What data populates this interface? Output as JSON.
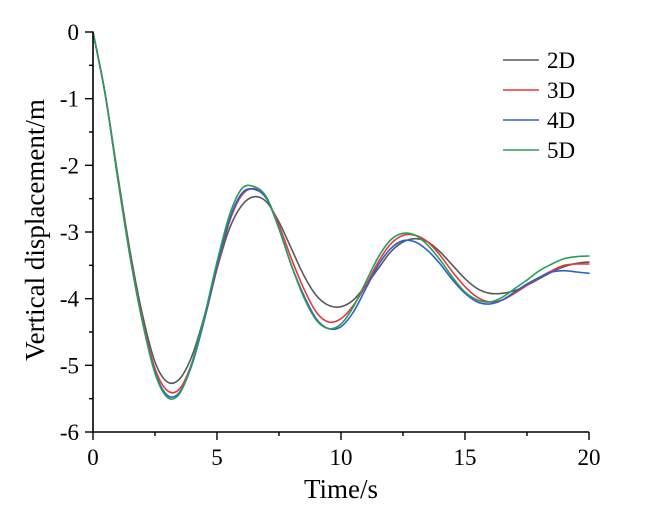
{
  "chart_data": {
    "type": "line",
    "title": "",
    "xlabel": "Time/s",
    "ylabel": "Vertical displacement/m",
    "xlim": [
      0,
      20
    ],
    "ylim": [
      -6,
      0
    ],
    "x_ticks": [
      0,
      5,
      10,
      15,
      20
    ],
    "y_ticks": [
      0,
      -1,
      -2,
      -3,
      -4,
      -5,
      -6
    ],
    "x_tick_labels": [
      "0",
      "5",
      "10",
      "15",
      "20"
    ],
    "y_tick_labels": [
      "0",
      "-1",
      "-2",
      "-3",
      "-4",
      "-5",
      "-6"
    ],
    "grid": false,
    "legend_position": "top-right",
    "x": [
      0,
      0.5,
      1,
      1.5,
      2,
      2.5,
      3,
      3.5,
      4,
      4.5,
      5,
      5.5,
      6,
      6.5,
      7,
      7.5,
      8,
      8.5,
      9,
      9.5,
      10,
      10.5,
      11,
      11.5,
      12,
      12.5,
      13,
      13.5,
      14,
      14.5,
      15,
      15.5,
      16,
      16.5,
      17,
      17.5,
      18,
      18.5,
      19,
      19.5,
      20
    ],
    "series": [
      {
        "name": "2D",
        "color": "#595959",
        "values": [
          0,
          -0.95,
          -2.15,
          -3.3,
          -4.25,
          -4.95,
          -5.25,
          -5.2,
          -4.85,
          -4.25,
          -3.55,
          -2.95,
          -2.6,
          -2.47,
          -2.55,
          -2.85,
          -3.25,
          -3.65,
          -3.95,
          -4.1,
          -4.12,
          -4.02,
          -3.8,
          -3.55,
          -3.3,
          -3.15,
          -3.1,
          -3.15,
          -3.3,
          -3.5,
          -3.7,
          -3.85,
          -3.92,
          -3.92,
          -3.88,
          -3.8,
          -3.7,
          -3.6,
          -3.52,
          -3.47,
          -3.45
        ]
      },
      {
        "name": "3D",
        "color": "#e8373a",
        "values": [
          0,
          -0.95,
          -2.18,
          -3.35,
          -4.32,
          -5.05,
          -5.38,
          -5.35,
          -4.95,
          -4.3,
          -3.55,
          -2.85,
          -2.45,
          -2.35,
          -2.5,
          -2.9,
          -3.4,
          -3.85,
          -4.2,
          -4.35,
          -4.3,
          -4.1,
          -3.8,
          -3.45,
          -3.18,
          -3.05,
          -3.05,
          -3.15,
          -3.35,
          -3.6,
          -3.82,
          -3.98,
          -4.05,
          -4.02,
          -3.92,
          -3.8,
          -3.68,
          -3.58,
          -3.5,
          -3.48,
          -3.48
        ]
      },
      {
        "name": "4D",
        "color": "#2b5fd0",
        "values": [
          0,
          -0.95,
          -2.2,
          -3.38,
          -4.35,
          -5.1,
          -5.45,
          -5.4,
          -4.98,
          -4.3,
          -3.52,
          -2.82,
          -2.42,
          -2.36,
          -2.5,
          -2.95,
          -3.5,
          -3.95,
          -4.3,
          -4.45,
          -4.42,
          -4.2,
          -3.85,
          -3.5,
          -3.25,
          -3.13,
          -3.15,
          -3.28,
          -3.48,
          -3.72,
          -3.92,
          -4.05,
          -4.08,
          -4.02,
          -3.9,
          -3.78,
          -3.68,
          -3.6,
          -3.58,
          -3.6,
          -3.62
        ]
      },
      {
        "name": "5D",
        "color": "#2a9d57",
        "values": [
          0,
          -0.95,
          -2.2,
          -3.38,
          -4.36,
          -5.12,
          -5.48,
          -5.42,
          -4.95,
          -4.25,
          -3.45,
          -2.75,
          -2.35,
          -2.32,
          -2.48,
          -2.95,
          -3.5,
          -3.98,
          -4.32,
          -4.45,
          -4.38,
          -4.12,
          -3.75,
          -3.38,
          -3.12,
          -3.02,
          -3.05,
          -3.2,
          -3.42,
          -3.68,
          -3.9,
          -4.02,
          -4.05,
          -3.98,
          -3.85,
          -3.72,
          -3.58,
          -3.48,
          -3.4,
          -3.37,
          -3.36
        ]
      }
    ]
  }
}
